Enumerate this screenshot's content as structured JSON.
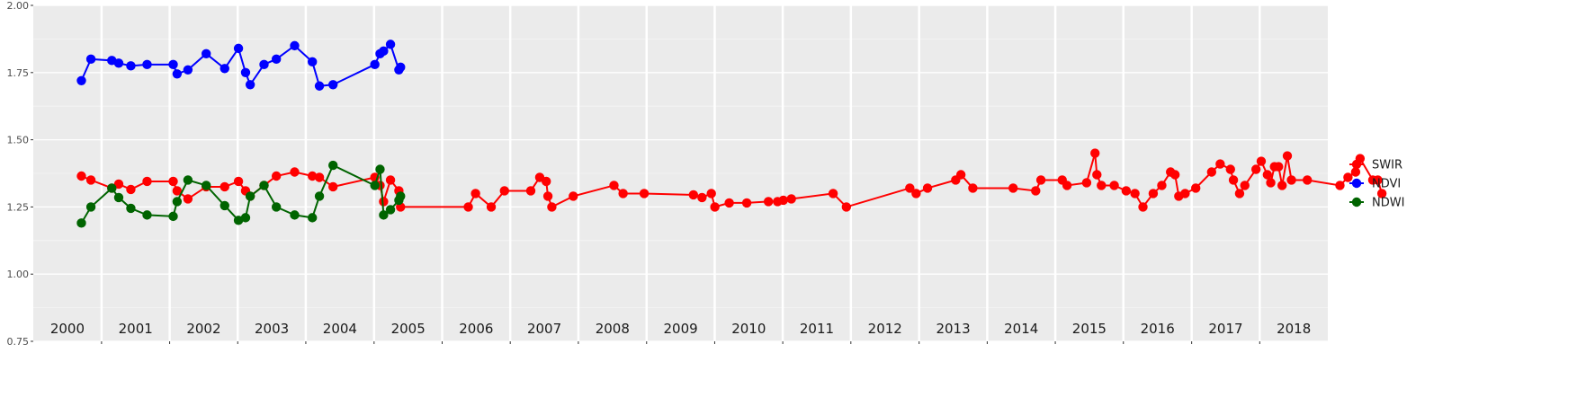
{
  "chart_data": {
    "type": "line",
    "x_type": "date",
    "xlim": [
      "2000-01-01",
      "2019-01-01"
    ],
    "ylim": [
      0.75,
      2.0
    ],
    "yticks": [
      0.75,
      1.0,
      1.25,
      1.5,
      1.75,
      2.0
    ],
    "ytick_labels": [
      "0.75",
      "1.00",
      "1.25",
      "1.50",
      "1.75",
      "2.00"
    ],
    "year_labels": [
      "2000",
      "2001",
      "2002",
      "2003",
      "2004",
      "2005",
      "2006",
      "2007",
      "2008",
      "2009",
      "2010",
      "2011",
      "2012",
      "2013",
      "2014",
      "2015",
      "2016",
      "2017",
      "2018"
    ],
    "year_dividers": [
      "2001-01-01",
      "2002-01-01",
      "2003-01-01",
      "2004-01-01",
      "2005-01-01",
      "2006-01-01",
      "2007-01-01",
      "2008-01-01",
      "2009-01-01",
      "2010-01-01",
      "2011-01-01",
      "2012-01-01",
      "2013-01-01",
      "2014-01-01",
      "2015-01-01",
      "2016-01-01",
      "2017-01-01",
      "2018-01-01"
    ],
    "grid": true,
    "legend_position": "right",
    "series": [
      {
        "name": "SWIR",
        "color": "#ff0000",
        "x": [
          "2000-09-15",
          "2000-11-05",
          "2001-02-25",
          "2001-04-03",
          "2001-06-07",
          "2001-09-02",
          "2002-01-20",
          "2002-02-10",
          "2002-04-09",
          "2002-07-16",
          "2002-10-23",
          "2003-01-05",
          "2003-02-12",
          "2003-03-09",
          "2003-05-22",
          "2003-07-27",
          "2003-11-02",
          "2004-02-05",
          "2004-03-14",
          "2004-05-26",
          "2005-01-05",
          "2005-02-02",
          "2005-02-21",
          "2005-03-30",
          "2005-05-14",
          "2005-05-23",
          "2006-05-21",
          "2006-06-29",
          "2006-09-21",
          "2006-12-01",
          "2007-04-21",
          "2007-06-08",
          "2007-07-13",
          "2007-07-22",
          "2007-08-12",
          "2007-12-05",
          "2008-07-10",
          "2008-08-28",
          "2008-12-19",
          "2009-09-09",
          "2009-10-25",
          "2009-12-14",
          "2010-01-02",
          "2010-03-20",
          "2010-06-22",
          "2010-10-16",
          "2010-12-04",
          "2011-01-04",
          "2011-02-16",
          "2011-09-28",
          "2011-12-08",
          "2012-11-12",
          "2012-12-16",
          "2013-02-15",
          "2013-07-16",
          "2013-08-13",
          "2013-10-16",
          "2014-05-20",
          "2014-09-18",
          "2014-10-16",
          "2015-02-07",
          "2015-03-05",
          "2015-06-18",
          "2015-08-02",
          "2015-08-12",
          "2015-09-05",
          "2015-11-13",
          "2016-01-16",
          "2016-03-03",
          "2016-04-15",
          "2016-06-09",
          "2016-07-25",
          "2016-09-10",
          "2016-10-04",
          "2016-10-24",
          "2016-11-27",
          "2017-01-23",
          "2017-04-18",
          "2017-06-03",
          "2017-07-28",
          "2017-08-13",
          "2017-09-15",
          "2017-10-13",
          "2017-12-12",
          "2018-01-09",
          "2018-02-11",
          "2018-03-01",
          "2018-03-21",
          "2018-04-12",
          "2018-05-01",
          "2018-05-29",
          "2018-06-20",
          "2018-09-13",
          "2019-03-07",
          "2019-04-19",
          "2019-05-30",
          "2019-06-23",
          "2019-08-30",
          "2019-09-26",
          "2019-10-18"
        ],
        "y": [
          1.365,
          1.35,
          1.32,
          1.335,
          1.315,
          1.345,
          1.345,
          1.31,
          1.28,
          1.325,
          1.325,
          1.345,
          1.31,
          1.29,
          1.33,
          1.365,
          1.38,
          1.365,
          1.36,
          1.325,
          1.36,
          1.33,
          1.27,
          1.35,
          1.31,
          1.25,
          1.25,
          1.3,
          1.25,
          1.31,
          1.31,
          1.36,
          1.345,
          1.29,
          1.25,
          1.29,
          1.33,
          1.3,
          1.3,
          1.295,
          1.285,
          1.3,
          1.25,
          1.265,
          1.265,
          1.27,
          1.27,
          1.275,
          1.28,
          1.3,
          1.25,
          1.32,
          1.3,
          1.32,
          1.35,
          1.37,
          1.32,
          1.32,
          1.31,
          1.35,
          1.35,
          1.33,
          1.34,
          1.45,
          1.37,
          1.33,
          1.33,
          1.31,
          1.3,
          1.25,
          1.3,
          1.33,
          1.38,
          1.37,
          1.29,
          1.3,
          1.32,
          1.38,
          1.41,
          1.39,
          1.35,
          1.3,
          1.33,
          1.39,
          1.42,
          1.37,
          1.34,
          1.4,
          1.4,
          1.33,
          1.44,
          1.35,
          1.35,
          1.33,
          1.36,
          1.38,
          1.43,
          1.35,
          1.35,
          1.3
        ]
      },
      {
        "name": "NDVI",
        "color": "#0000ff",
        "x": [
          "2000-09-15",
          "2000-11-05",
          "2001-02-25",
          "2001-04-03",
          "2001-06-07",
          "2001-09-02",
          "2002-01-20",
          "2002-02-10",
          "2002-04-09",
          "2002-07-16",
          "2002-10-23",
          "2003-01-05",
          "2003-02-12",
          "2003-03-09",
          "2003-05-22",
          "2003-07-27",
          "2003-11-02",
          "2004-02-05",
          "2004-03-14",
          "2004-05-26",
          "2005-01-05",
          "2005-02-02",
          "2005-02-21",
          "2005-03-30",
          "2005-05-14",
          "2005-05-23"
        ],
        "y": [
          1.72,
          1.8,
          1.795,
          1.785,
          1.775,
          1.78,
          1.78,
          1.745,
          1.76,
          1.82,
          1.765,
          1.84,
          1.75,
          1.705,
          1.78,
          1.8,
          1.85,
          1.79,
          1.7,
          1.705,
          1.78,
          1.82,
          1.83,
          1.855,
          1.76,
          1.77
        ]
      },
      {
        "name": "NDWI",
        "color": "#006400",
        "x": [
          "2000-09-15",
          "2000-11-05",
          "2001-02-25",
          "2001-04-03",
          "2001-06-07",
          "2001-09-02",
          "2002-01-20",
          "2002-02-10",
          "2002-04-09",
          "2002-07-16",
          "2002-10-23",
          "2003-01-05",
          "2003-02-12",
          "2003-03-09",
          "2003-05-22",
          "2003-07-27",
          "2003-11-02",
          "2004-02-05",
          "2004-03-14",
          "2004-05-26",
          "2005-01-05",
          "2005-02-02",
          "2005-02-21",
          "2005-03-30",
          "2005-05-14",
          "2005-05-23"
        ],
        "y": [
          1.19,
          1.25,
          1.32,
          1.285,
          1.245,
          1.22,
          1.215,
          1.27,
          1.35,
          1.33,
          1.255,
          1.2,
          1.21,
          1.29,
          1.33,
          1.25,
          1.22,
          1.21,
          1.29,
          1.405,
          1.33,
          1.39,
          1.22,
          1.24,
          1.275,
          1.29
        ]
      }
    ]
  }
}
